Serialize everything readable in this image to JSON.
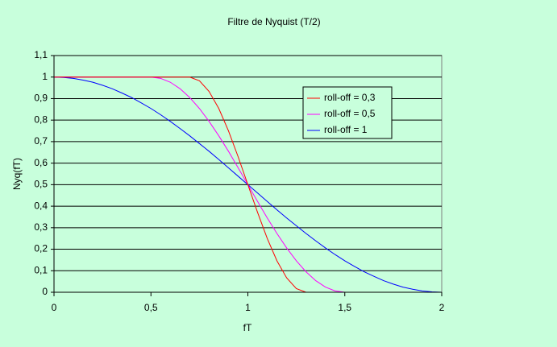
{
  "chart_data": {
    "type": "line",
    "title": "Filtre de Nyquist (T/2)",
    "x_label": "fT",
    "y_label": "Nyq(fT)",
    "x": [
      0,
      0.05,
      0.1,
      0.15,
      0.2,
      0.25,
      0.3,
      0.35,
      0.4,
      0.45,
      0.5,
      0.55,
      0.6,
      0.65,
      0.7,
      0.75,
      0.8,
      0.85,
      0.9,
      0.95,
      1,
      1.05,
      1.1,
      1.15,
      1.2,
      1.25,
      1.3,
      1.35,
      1.4,
      1.45,
      1.5,
      1.55,
      1.6,
      1.65,
      1.7,
      1.75,
      1.8,
      1.85,
      1.9,
      1.95,
      2
    ],
    "series": [
      {
        "name": "roll-off = 0,3",
        "color": "#ff0000",
        "values": [
          1,
          1,
          1,
          1,
          1,
          1,
          1,
          1,
          1,
          1,
          1,
          1,
          1,
          1,
          1,
          0.983,
          0.933,
          0.854,
          0.75,
          0.629,
          0.5,
          0.371,
          0.25,
          0.146,
          0.067,
          0.017,
          0,
          0,
          0,
          0,
          0,
          0,
          0,
          0,
          0,
          0,
          0,
          0,
          0,
          0,
          0
        ]
      },
      {
        "name": "roll-off = 0,5",
        "color": "#ff00ff",
        "values": [
          1,
          1,
          1,
          1,
          1,
          1,
          1,
          1,
          1,
          1,
          1,
          0.994,
          0.976,
          0.946,
          0.905,
          0.854,
          0.794,
          0.727,
          0.655,
          0.578,
          0.5,
          0.422,
          0.345,
          0.273,
          0.206,
          0.146,
          0.095,
          0.054,
          0.024,
          0.006,
          0,
          0,
          0,
          0,
          0,
          0,
          0,
          0,
          0,
          0,
          0
        ]
      },
      {
        "name": "roll-off = 1",
        "color": "#0000ff",
        "values": [
          1,
          0.998,
          0.994,
          0.986,
          0.976,
          0.962,
          0.946,
          0.926,
          0.905,
          0.88,
          0.854,
          0.825,
          0.794,
          0.761,
          0.727,
          0.691,
          0.655,
          0.617,
          0.578,
          0.539,
          0.5,
          0.461,
          0.422,
          0.383,
          0.345,
          0.309,
          0.273,
          0.239,
          0.206,
          0.175,
          0.146,
          0.12,
          0.095,
          0.074,
          0.054,
          0.038,
          0.024,
          0.014,
          0.006,
          0.002,
          0
        ]
      }
    ],
    "xlim": [
      0,
      2
    ],
    "xticks": [
      0,
      {
        "value": 0.5,
        "label": "0,5"
      },
      1,
      {
        "value": 1.5,
        "label": "1,5"
      },
      2
    ],
    "ylim": [
      0,
      1.1
    ],
    "yticks": [
      0,
      {
        "value": 0.1,
        "label": "0,1"
      },
      {
        "value": 0.2,
        "label": "0,2"
      },
      {
        "value": 0.3,
        "label": "0,3"
      },
      {
        "value": 0.4,
        "label": "0,4"
      },
      {
        "value": 0.5,
        "label": "0,5"
      },
      {
        "value": 0.6,
        "label": "0,6"
      },
      {
        "value": 0.7,
        "label": "0,7"
      },
      {
        "value": 0.8,
        "label": "0,8"
      },
      {
        "value": 0.9,
        "label": "0,9"
      },
      1,
      {
        "value": 1.1,
        "label": "1,1"
      }
    ],
    "grid": true,
    "legend": "upper right"
  }
}
